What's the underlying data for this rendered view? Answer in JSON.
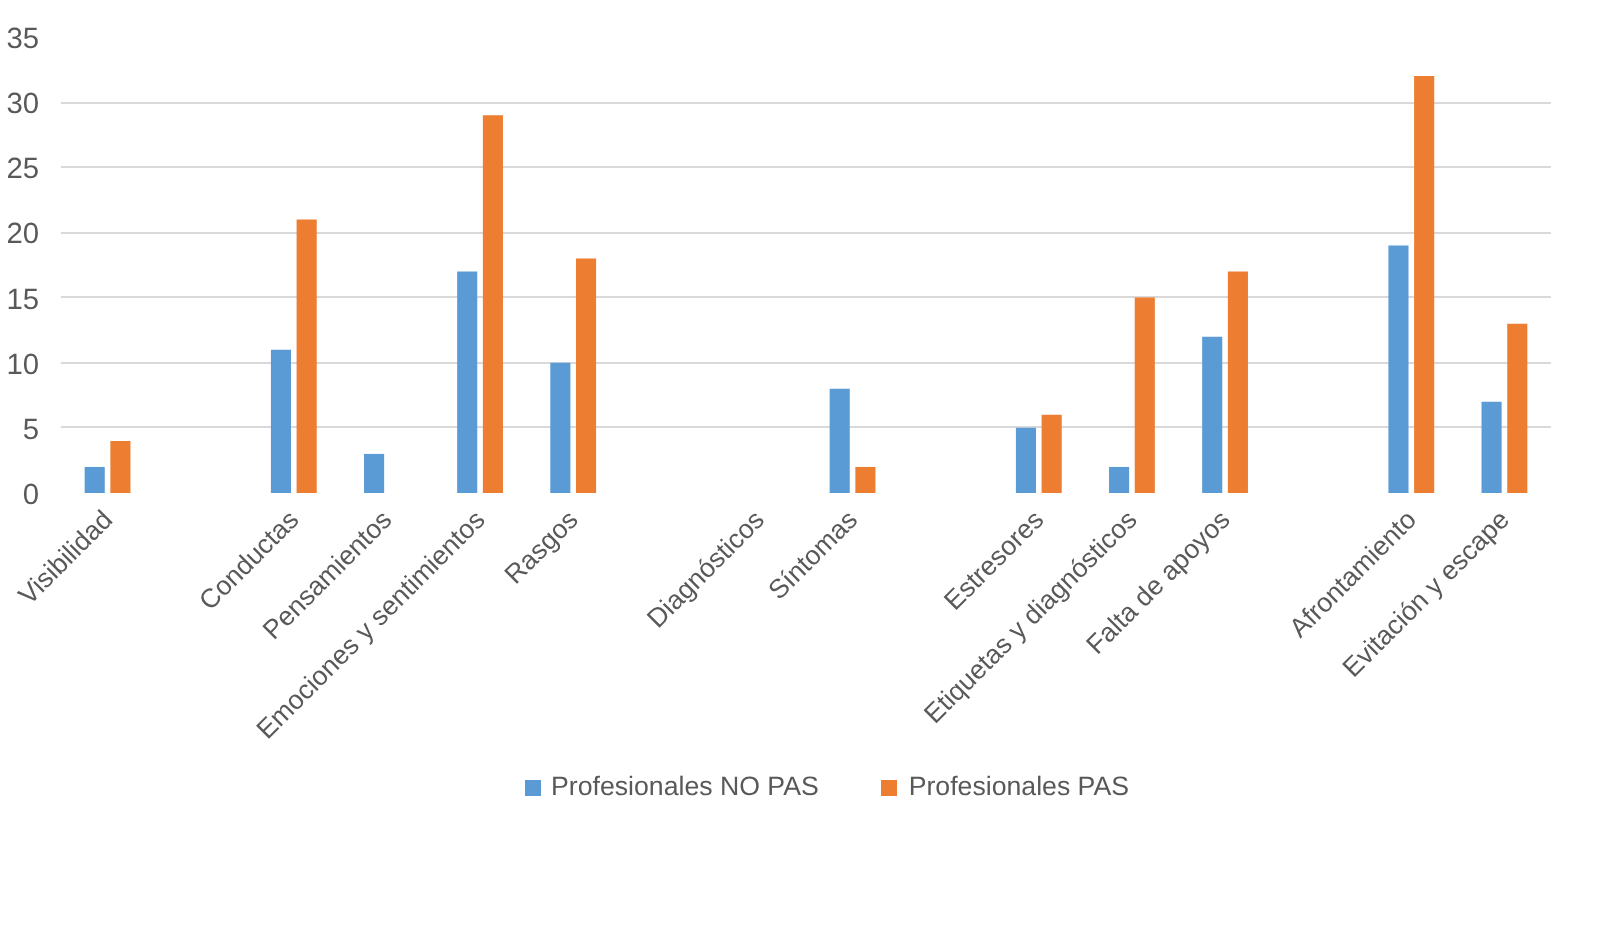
{
  "chart_data": {
    "type": "bar",
    "categories": [
      "Visibilidad",
      null,
      "Conductas",
      "Pensamientos",
      "Emociones y sentimientos",
      "Rasgos",
      null,
      "Diagnósticos",
      "Síntomas",
      null,
      "Estresores",
      "Etiquetas y diagnósticos",
      "Falta de apoyos",
      null,
      "Afrontamiento",
      "Evitación y escape"
    ],
    "series": [
      {
        "name": "Profesionales NO PAS",
        "color": "#5b9bd5",
        "values": [
          2,
          null,
          11,
          3,
          17,
          10,
          null,
          null,
          8,
          null,
          5,
          2,
          12,
          null,
          19,
          7
        ]
      },
      {
        "name": "Profesionales PAS",
        "color": "#ed7d31",
        "values": [
          4,
          null,
          21,
          null,
          29,
          18,
          null,
          null,
          2,
          null,
          6,
          15,
          17,
          null,
          32,
          13
        ]
      }
    ],
    "ylim": [
      0,
      35
    ],
    "yticks": [
      0,
      5,
      10,
      15,
      20,
      25,
      30,
      35
    ],
    "grid": "y",
    "legend": "bottom"
  }
}
